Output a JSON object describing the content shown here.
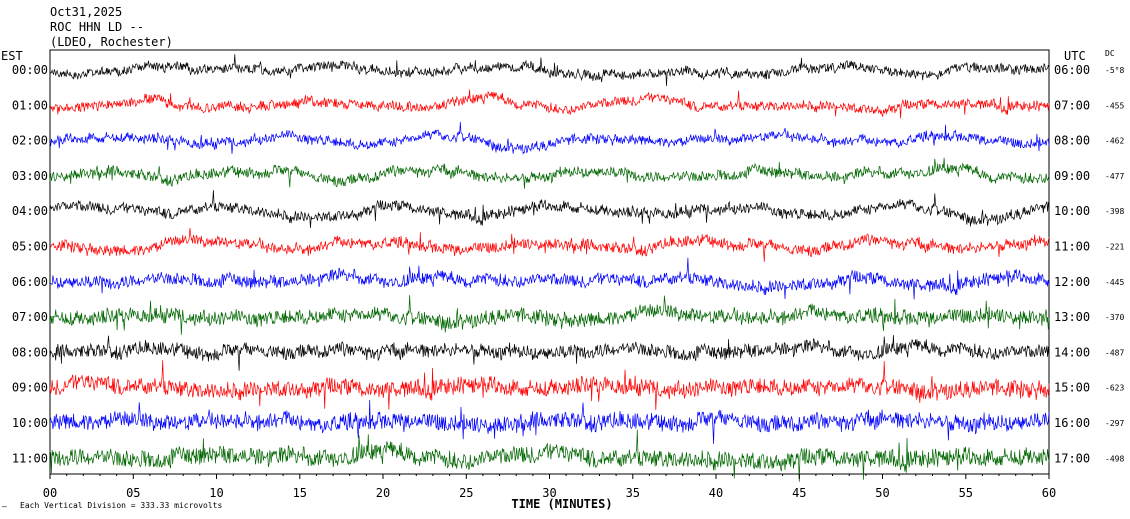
{
  "header": {
    "date": "Oct31,2025",
    "station": "ROC HHN LD --",
    "network": "(LDEO, Rochester)"
  },
  "chart_data": {
    "type": "line",
    "title": "ROC HHN LD --",
    "left_axis_label": "EST",
    "right_axis_label": "UTC",
    "dc_label": "DC",
    "xlabel": "TIME (MINUTES)",
    "xlim": [
      0,
      60
    ],
    "x_ticks": [
      "00",
      "05",
      "10",
      "15",
      "20",
      "25",
      "30",
      "35",
      "40",
      "45",
      "50",
      "55",
      "60"
    ],
    "scale_note": "Each Vertical Division = 333.33 microvolts",
    "scale_mark": "—",
    "colors": [
      "#000000",
      "#ff0000",
      "#0000ff",
      "#006600"
    ],
    "rows": [
      {
        "est": "00:00",
        "utc": "06:00",
        "dc": "-5°8",
        "color": "#000000",
        "noise": 0.45
      },
      {
        "est": "01:00",
        "utc": "07:00",
        "dc": "-455",
        "color": "#ff0000",
        "noise": 0.5
      },
      {
        "est": "02:00",
        "utc": "08:00",
        "dc": "-462",
        "color": "#0000ff",
        "noise": 0.5
      },
      {
        "est": "03:00",
        "utc": "09:00",
        "dc": "-477",
        "color": "#006600",
        "noise": 0.6
      },
      {
        "est": "04:00",
        "utc": "10:00",
        "dc": "-398",
        "color": "#000000",
        "noise": 0.6
      },
      {
        "est": "05:00",
        "utc": "11:00",
        "dc": "-221",
        "color": "#ff0000",
        "noise": 0.65
      },
      {
        "est": "06:00",
        "utc": "12:00",
        "dc": "-445",
        "color": "#0000ff",
        "noise": 0.8
      },
      {
        "est": "07:00",
        "utc": "13:00",
        "dc": "-370",
        "color": "#006600",
        "noise": 1.0
      },
      {
        "est": "08:00",
        "utc": "14:00",
        "dc": "-487",
        "color": "#000000",
        "noise": 0.9
      },
      {
        "est": "09:00",
        "utc": "15:00",
        "dc": "-623",
        "color": "#ff0000",
        "noise": 1.2
      },
      {
        "est": "10:00",
        "utc": "16:00",
        "dc": "-297",
        "color": "#0000ff",
        "noise": 1.2
      },
      {
        "est": "11:00",
        "utc": "17:00",
        "dc": "-498",
        "color": "#006600",
        "noise": 1.3
      }
    ]
  }
}
